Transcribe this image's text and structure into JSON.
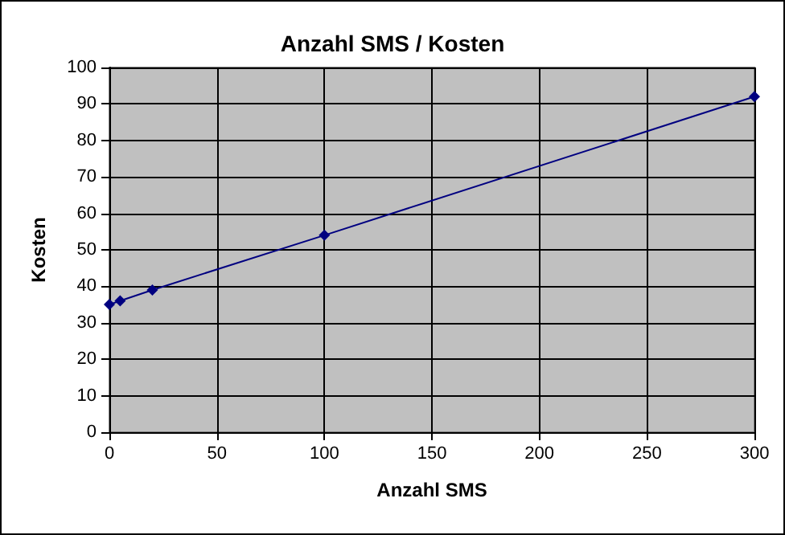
{
  "chart_data": {
    "type": "line",
    "title": "Anzahl SMS / Kosten",
    "xlabel": "Anzahl SMS",
    "ylabel": "Kosten",
    "x": [
      0,
      5,
      20,
      100,
      300
    ],
    "series": [
      {
        "color": "#000080",
        "values": [
          35,
          36,
          39,
          54,
          92
        ]
      }
    ],
    "xlim": [
      0,
      300
    ],
    "xticks": [
      0,
      50,
      100,
      150,
      200,
      250,
      300
    ],
    "ylim": [
      0,
      100
    ],
    "yticks": [
      0,
      10,
      20,
      30,
      40,
      50,
      60,
      70,
      80,
      90,
      100
    ],
    "grid": true,
    "marker": "diamond",
    "line_style": "solid"
  }
}
